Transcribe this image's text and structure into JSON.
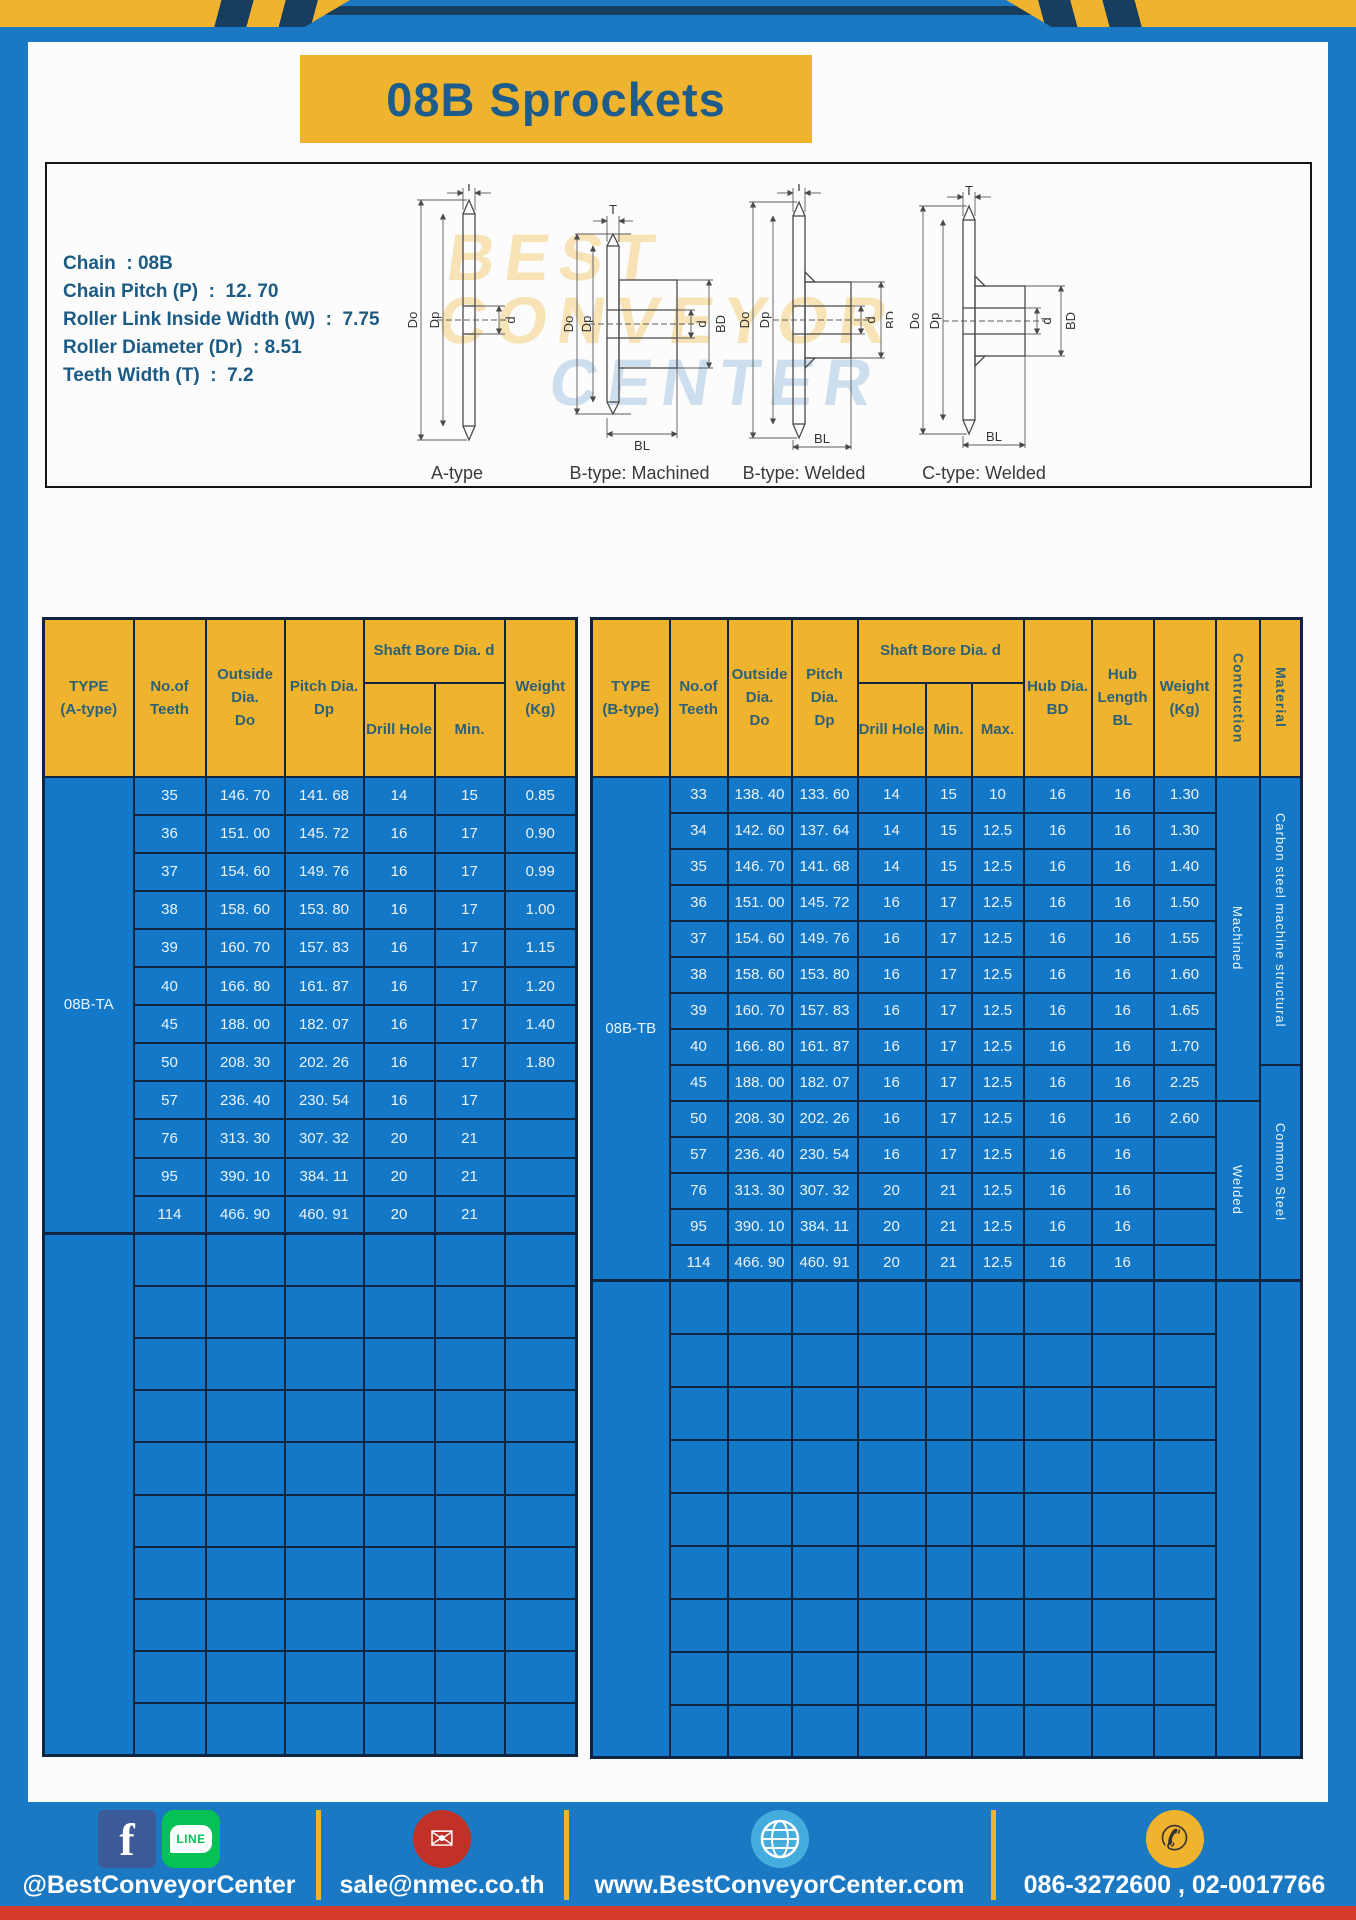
{
  "page": {
    "title": "08B Sprockets"
  },
  "colors": {
    "accent_yellow": "#EFB32D",
    "page_blue": "#1A79C2",
    "cell_blue": "#1478C8",
    "border_navy": "#0E2440",
    "header_text": "#2C6177",
    "title_text": "#1E5C8C",
    "body_text": "#EAF4FC",
    "red_strip": "#D5392B",
    "facebook_blue": "#3C5A99",
    "line_green": "#06C255",
    "email_red": "#C23127",
    "globe_blue": "#45ACDE"
  },
  "specs": {
    "lines": [
      "Chain  : 08B",
      "Chain Pitch (P)  :  12. 70",
      "Roller Link Inside Width (W)  :  7.75",
      "Roller Diameter (Dr)  : 8.51",
      "Teeth Width (T)  :  7.2"
    ]
  },
  "watermark": {
    "line1": "BEST",
    "line2": "CONVEYOR",
    "line3": "CENTER"
  },
  "diagrams": {
    "items": [
      {
        "label": "A-type",
        "dims": {
          "T": "T",
          "Do": "Do",
          "Dp": "Dp",
          "d": "d"
        }
      },
      {
        "label": "B-type: Machined",
        "dims": {
          "T": "T",
          "Do": "Do",
          "Dp": "Dp",
          "d": "d",
          "BD": "BD",
          "BL": "BL"
        }
      },
      {
        "label": "B-type: Welded",
        "dims": {
          "T": "T",
          "Do": "Do",
          "Dp": "Dp",
          "d": "d",
          "BD": "BD",
          "BL": "BL"
        }
      },
      {
        "label": "C-type: Welded",
        "dims": {
          "T": "T",
          "Do": "Do",
          "Dp": "Dp",
          "d": "d",
          "BD": "BD",
          "BL": "BL"
        }
      }
    ]
  },
  "table_a": {
    "type_label": "08B-TA",
    "headers": {
      "type": "TYPE\n(A-type)",
      "teeth": "No.of\nTeeth",
      "outside": "Outside\nDia.\nDo",
      "pitch": "Pitch Dia.\nDp",
      "shaft_bore": "Shaft Bore Dia. d",
      "drill": "Drill Hole",
      "min": "Min.",
      "weight": "Weight\n(Kg)"
    },
    "rows": [
      [
        "35",
        "146. 70",
        "141. 68",
        "14",
        "15",
        "0.85"
      ],
      [
        "36",
        "151. 00",
        "145. 72",
        "16",
        "17",
        "0.90"
      ],
      [
        "37",
        "154. 60",
        "149. 76",
        "16",
        "17",
        "0.99"
      ],
      [
        "38",
        "158. 60",
        "153. 80",
        "16",
        "17",
        "1.00"
      ],
      [
        "39",
        "160. 70",
        "157. 83",
        "16",
        "17",
        "1.15"
      ],
      [
        "40",
        "166. 80",
        "161. 87",
        "16",
        "17",
        "1.20"
      ],
      [
        "45",
        "188. 00",
        "182. 07",
        "16",
        "17",
        "1.40"
      ],
      [
        "50",
        "208. 30",
        "202. 26",
        "16",
        "17",
        "1.80"
      ],
      [
        "57",
        "236. 40",
        "230. 54",
        "16",
        "17",
        ""
      ],
      [
        "76",
        "313. 30",
        "307. 32",
        "20",
        "21",
        ""
      ],
      [
        "95",
        "390. 10",
        "384. 11",
        "20",
        "21",
        ""
      ],
      [
        "114",
        "466. 90",
        "460. 91",
        "20",
        "21",
        ""
      ]
    ],
    "empty_rows": 10
  },
  "table_b": {
    "type_label": "08B-TB",
    "headers": {
      "type": "TYPE\n(B-type)",
      "teeth": "No.of\nTeeth",
      "outside": "Outside\nDia.\nDo",
      "pitch": "Pitch Dia.\nDp",
      "shaft_bore": "Shaft Bore Dia. d",
      "drill": "Drill Hole",
      "min": "Min.",
      "max": "Max.",
      "hub_dia": "Hub Dia.\nBD",
      "hub_len": "Hub\nLength\nBL",
      "weight": "Weight\n(Kg)",
      "construction": "Contruction",
      "material": "Material"
    },
    "rows": [
      [
        "33",
        "138. 40",
        "133. 60",
        "14",
        "15",
        "10",
        "16",
        "16",
        "1.30"
      ],
      [
        "34",
        "142. 60",
        "137. 64",
        "14",
        "15",
        "12.5",
        "16",
        "16",
        "1.30"
      ],
      [
        "35",
        "146. 70",
        "141. 68",
        "14",
        "15",
        "12.5",
        "16",
        "16",
        "1.40"
      ],
      [
        "36",
        "151. 00",
        "145. 72",
        "16",
        "17",
        "12.5",
        "16",
        "16",
        "1.50"
      ],
      [
        "37",
        "154. 60",
        "149. 76",
        "16",
        "17",
        "12.5",
        "16",
        "16",
        "1.55"
      ],
      [
        "38",
        "158. 60",
        "153. 80",
        "16",
        "17",
        "12.5",
        "16",
        "16",
        "1.60"
      ],
      [
        "39",
        "160. 70",
        "157. 83",
        "16",
        "17",
        "12.5",
        "16",
        "16",
        "1.65"
      ],
      [
        "40",
        "166. 80",
        "161. 87",
        "16",
        "17",
        "12.5",
        "16",
        "16",
        "1.70"
      ],
      [
        "45",
        "188. 00",
        "182. 07",
        "16",
        "17",
        "12.5",
        "16",
        "16",
        "2.25"
      ],
      [
        "50",
        "208. 30",
        "202. 26",
        "16",
        "17",
        "12.5",
        "16",
        "16",
        "2.60"
      ],
      [
        "57",
        "236. 40",
        "230. 54",
        "16",
        "17",
        "12.5",
        "16",
        "16",
        ""
      ],
      [
        "76",
        "313. 30",
        "307. 32",
        "20",
        "21",
        "12.5",
        "16",
        "16",
        ""
      ],
      [
        "95",
        "390. 10",
        "384. 11",
        "20",
        "21",
        "12.5",
        "16",
        "16",
        ""
      ],
      [
        "114",
        "466. 90",
        "460. 91",
        "20",
        "21",
        "12.5",
        "16",
        "16",
        ""
      ]
    ],
    "construction_groups": [
      {
        "label": "Machined",
        "rows": 9
      },
      {
        "label": "Welded",
        "rows": 5
      }
    ],
    "material_groups": [
      {
        "label": "Carbon steel  machine structural",
        "rows": 8
      },
      {
        "label": "Common  Steel",
        "rows": 6
      }
    ],
    "empty_rows": 9
  },
  "footer": {
    "facebook_glyph": "f",
    "line_glyph": "LINE",
    "email_glyph": "✉",
    "phone_glyph": "✆",
    "social_handle": "@BestConveyorCenter",
    "email": "sale@nmec.co.th",
    "website": "www.BestConveyorCenter.com",
    "phone": "086-3272600 , 02-0017766"
  }
}
